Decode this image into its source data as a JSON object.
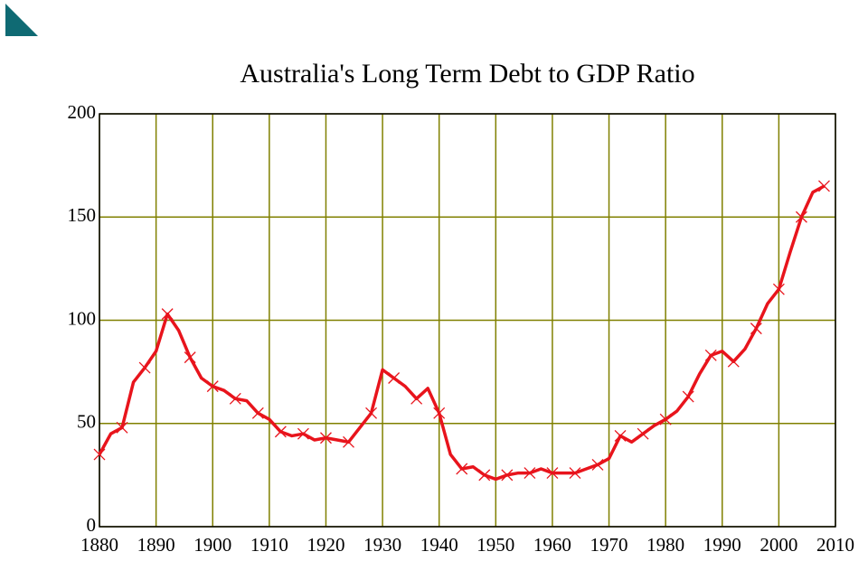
{
  "chart_data": {
    "type": "line",
    "title": "Australia's Long Term Debt to GDP Ratio",
    "x": [
      1880,
      1882,
      1884,
      1886,
      1888,
      1890,
      1892,
      1894,
      1896,
      1898,
      1900,
      1902,
      1904,
      1906,
      1908,
      1910,
      1912,
      1914,
      1916,
      1918,
      1920,
      1922,
      1924,
      1926,
      1928,
      1930,
      1932,
      1934,
      1936,
      1938,
      1940,
      1942,
      1944,
      1946,
      1948,
      1950,
      1952,
      1954,
      1956,
      1958,
      1960,
      1962,
      1964,
      1966,
      1968,
      1970,
      1972,
      1974,
      1976,
      1978,
      1980,
      1982,
      1984,
      1986,
      1988,
      1990,
      1992,
      1994,
      1996,
      1998,
      2000,
      2002,
      2004,
      2006,
      2008
    ],
    "series": [
      {
        "color": "#e8141c",
        "values": [
          35,
          45,
          48,
          70,
          77,
          85,
          103,
          95,
          82,
          72,
          68,
          66,
          62,
          61,
          55,
          52,
          46,
          44,
          45,
          42,
          43,
          42,
          41,
          48,
          55,
          76,
          72,
          68,
          62,
          67,
          55,
          35,
          28,
          29,
          25,
          23,
          25,
          26,
          26,
          28,
          26,
          26,
          26,
          28,
          30,
          33,
          44,
          41,
          45,
          49,
          52,
          56,
          63,
          74,
          83,
          85,
          80,
          86,
          96,
          108,
          115,
          133,
          150,
          162,
          165
        ]
      }
    ],
    "xlim": [
      1880,
      2010
    ],
    "xticks": [
      1880,
      1890,
      1900,
      1910,
      1920,
      1930,
      1940,
      1950,
      1960,
      1970,
      1980,
      1990,
      2000,
      2010
    ],
    "ylim": [
      0,
      200
    ],
    "yticks": [
      0,
      50,
      100,
      150,
      200
    ],
    "grid": true,
    "grid_color": "#808000"
  }
}
